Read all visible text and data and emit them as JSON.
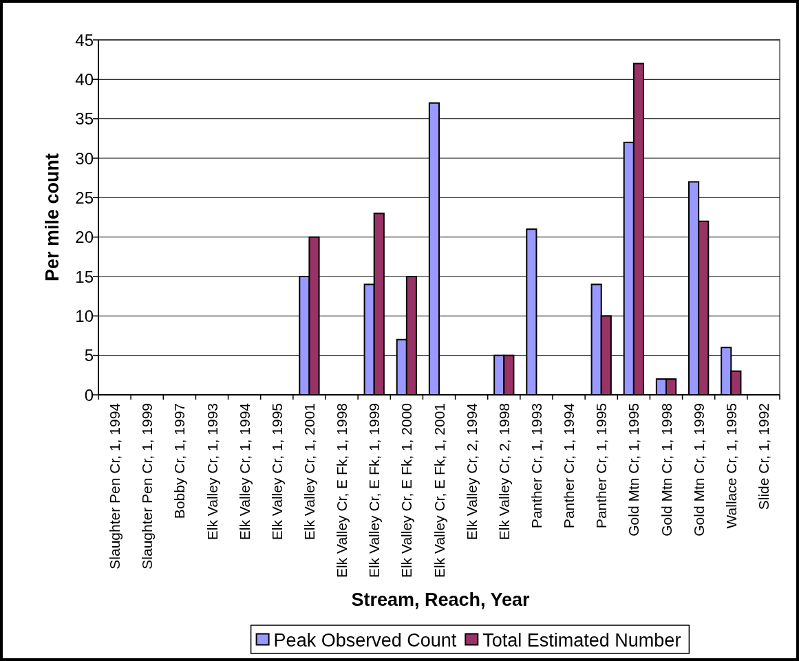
{
  "chart_data": {
    "type": "bar",
    "xlabel": "Stream, Reach, Year",
    "ylabel": "Per mile count",
    "categories": [
      "Slaughter Pen Cr, 1, 1994",
      "Slaughter Pen Cr, 1, 1999",
      "Bobby Cr, 1, 1997",
      "Elk Valley Cr, 1, 1993",
      "Elk Valley Cr, 1, 1994",
      "Elk Valley Cr, 1, 1995",
      "Elk Valley Cr, 1, 2001",
      "Elk Valley Cr, E Fk, 1, 1998",
      "Elk Valley Cr, E Fk, 1, 1999",
      "Elk Valley Cr, E Fk, 1, 2000",
      "Elk Valley Cr, E Fk, 1, 2001",
      "Elk Valley Cr, 2, 1994",
      "Elk Valley Cr, 2, 1998",
      "Panther Cr, 1, 1993",
      "Panther Cr, 1, 1994",
      "Panther Cr, 1, 1995",
      "Gold Mtn Cr, 1, 1995",
      "Gold Mtn Cr, 1, 1998",
      "Gold Mtn Cr, 1, 1999",
      "Wallace Cr, 1, 1995",
      "Slide Cr, 1, 1992"
    ],
    "series": [
      {
        "name": "Peak Observed Count",
        "color": "#9999ff",
        "values": [
          null,
          null,
          null,
          null,
          null,
          null,
          15,
          null,
          14,
          7,
          37,
          null,
          5,
          21,
          null,
          14,
          32,
          2,
          27,
          6,
          null
        ]
      },
      {
        "name": "Total Estimated Number",
        "color": "#993366",
        "values": [
          null,
          null,
          null,
          null,
          null,
          null,
          20,
          null,
          23,
          15,
          null,
          null,
          5,
          null,
          null,
          10,
          42,
          2,
          22,
          3,
          null
        ]
      }
    ],
    "ylim": [
      0,
      45
    ],
    "yticks": [
      0,
      5,
      10,
      15,
      20,
      25,
      30,
      35,
      40,
      45
    ],
    "grid": true,
    "legend": "bottom"
  }
}
